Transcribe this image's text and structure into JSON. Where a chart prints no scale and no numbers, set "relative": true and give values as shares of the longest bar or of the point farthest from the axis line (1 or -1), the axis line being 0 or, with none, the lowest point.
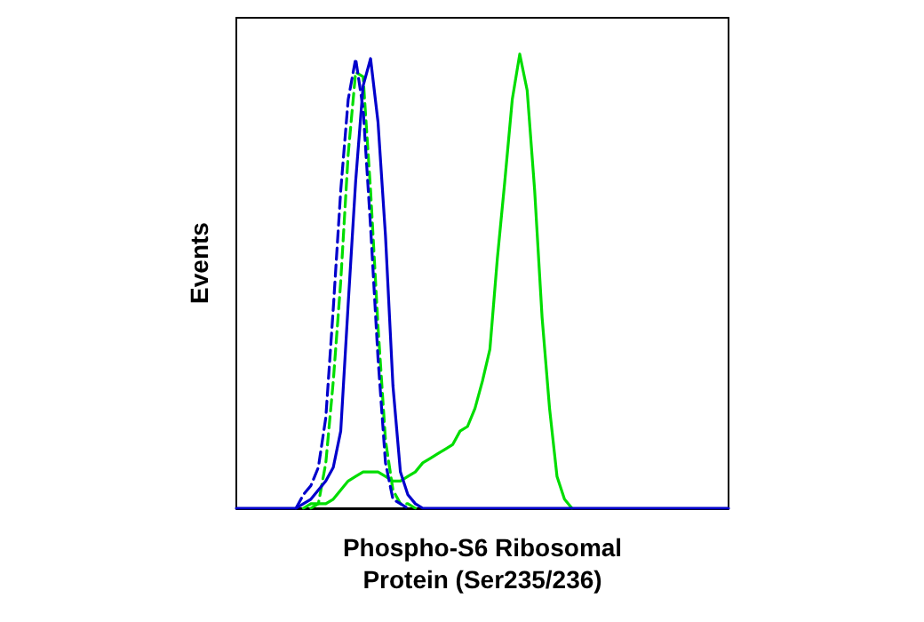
{
  "chart_data": {
    "type": "line",
    "relative": true,
    "xlabel": "Phospho-S6 Ribosomal\nProtein (Ser235/236)",
    "ylabel": "Events",
    "grid": false,
    "marker": "none",
    "categories": [
      null,
      null,
      null,
      null,
      null,
      null,
      null,
      null,
      null,
      null,
      null,
      null,
      null,
      null,
      null,
      null,
      null,
      null,
      null,
      null,
      null,
      null,
      null,
      null,
      null,
      null,
      null,
      null,
      null,
      null,
      null,
      null,
      null,
      null,
      null,
      null,
      null,
      null,
      null,
      null,
      null,
      null,
      null,
      null,
      null,
      null,
      null,
      null,
      null,
      null,
      null,
      null,
      null,
      null,
      null,
      null,
      null,
      null,
      null,
      null,
      null,
      null,
      null,
      null,
      null,
      null,
      null
    ],
    "series": [
      {
        "color": "#00dd00",
        "line_style": "solid",
        "values": [
          null,
          null,
          null,
          null,
          null,
          null,
          null,
          null,
          null,
          0,
          0.01,
          0.01,
          0.01,
          0.02,
          0.04,
          0.06,
          0.07,
          0.08,
          0.08,
          0.08,
          0.07,
          0.06,
          0.06,
          0.07,
          0.08,
          0.1,
          0.11,
          0.12,
          0.13,
          0.14,
          0.17,
          0.18,
          0.22,
          0.28,
          0.35,
          0.55,
          0.72,
          0.9,
          1,
          0.92,
          0.7,
          0.42,
          0.22,
          0.07,
          0.02,
          0,
          null,
          null,
          null,
          null,
          null,
          null,
          null,
          null,
          null,
          null,
          null,
          null,
          null,
          null,
          null,
          null,
          null,
          null,
          null,
          null,
          null
        ]
      },
      {
        "color": "#00dd00",
        "line_style": "dashed",
        "values": [
          null,
          null,
          null,
          null,
          null,
          null,
          null,
          null,
          null,
          null,
          0,
          0.01,
          0.1,
          0.28,
          0.5,
          0.78,
          0.96,
          0.95,
          0.7,
          0.4,
          0.15,
          0.04,
          0.01,
          0.01,
          0,
          null,
          null,
          null,
          null,
          null,
          null,
          null,
          null,
          null,
          null,
          null,
          null,
          null,
          null,
          null,
          null,
          null,
          null,
          null,
          null,
          null,
          null,
          null,
          null,
          null,
          null,
          null,
          null,
          null,
          null,
          null,
          null,
          null,
          null,
          null,
          null,
          null,
          null,
          null,
          null,
          null,
          null
        ]
      },
      {
        "color": "#0000cc",
        "line_style": "dashed",
        "values": [
          null,
          null,
          null,
          null,
          null,
          null,
          null,
          null,
          0,
          0.03,
          0.05,
          0.09,
          0.2,
          0.44,
          0.7,
          0.9,
          0.99,
          0.88,
          0.62,
          0.33,
          0.1,
          0.02,
          0.01,
          0,
          null,
          null,
          null,
          null,
          null,
          null,
          null,
          null,
          null,
          null,
          null,
          null,
          null,
          null,
          null,
          null,
          null,
          null,
          null,
          null,
          null,
          null,
          null,
          null,
          null,
          null,
          null,
          null,
          null,
          null,
          null,
          null,
          null,
          null,
          null,
          null,
          null,
          null,
          null,
          null,
          null,
          null,
          null
        ]
      },
      {
        "color": "#0000cc",
        "line_style": "solid",
        "values": [
          0,
          0,
          0,
          0,
          0,
          0,
          0,
          0,
          0,
          0.01,
          0.02,
          0.04,
          0.06,
          0.09,
          0.17,
          0.45,
          0.72,
          0.93,
          0.99,
          0.85,
          0.6,
          0.27,
          0.08,
          0.03,
          0.01,
          0,
          0,
          0,
          0,
          0,
          0,
          0,
          0,
          0,
          0,
          0,
          0,
          0,
          0,
          0,
          0,
          0,
          0,
          0,
          0,
          0,
          0,
          0,
          0,
          0,
          0,
          0,
          0,
          0,
          0,
          0,
          0,
          0,
          0,
          0,
          0,
          0,
          0,
          0,
          0,
          0,
          0
        ]
      }
    ]
  }
}
